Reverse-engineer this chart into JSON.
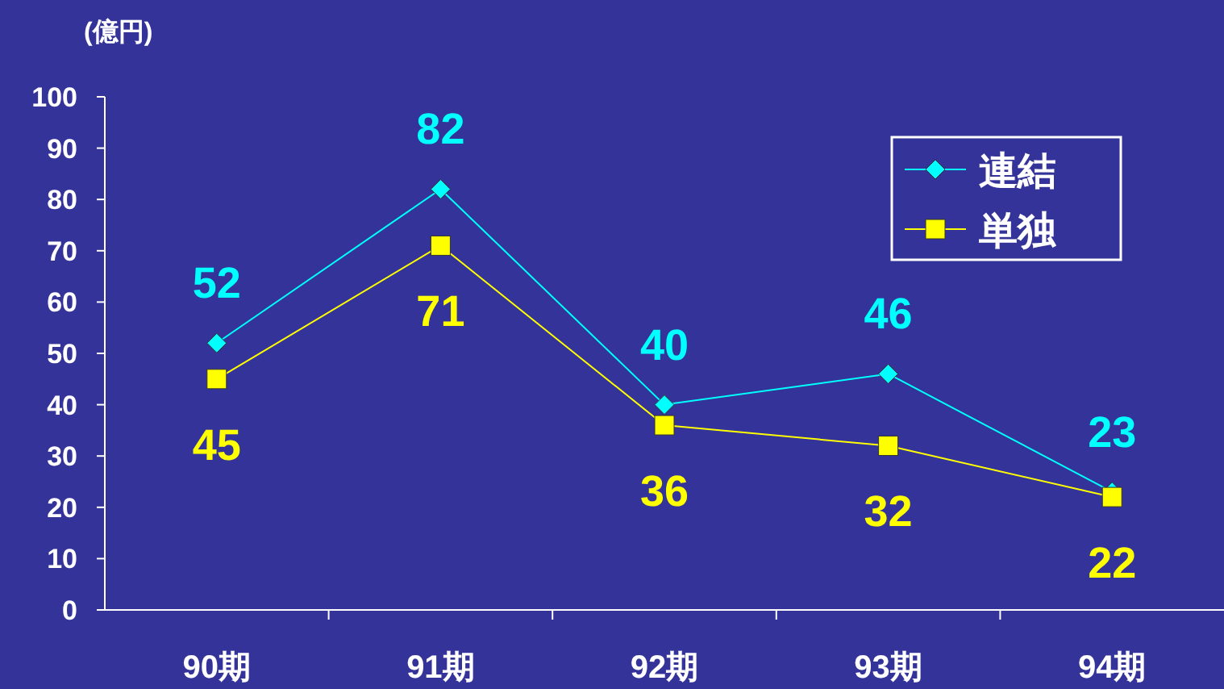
{
  "chart_data": {
    "type": "line",
    "ylabel": "(億円)",
    "categories": [
      "90期",
      "91期",
      "92期",
      "93期",
      "94期"
    ],
    "series": [
      {
        "name": "連結",
        "color": "#00ffff",
        "marker": "diamond",
        "values": [
          52,
          82,
          40,
          46,
          23
        ]
      },
      {
        "name": "単独",
        "color": "#ffff00",
        "marker": "square",
        "values": [
          45,
          71,
          36,
          32,
          22
        ]
      }
    ],
    "ylim": [
      0,
      100
    ],
    "yticks": [
      0,
      10,
      20,
      30,
      40,
      50,
      60,
      70,
      80,
      90,
      100
    ],
    "grid": false,
    "legend": "top right",
    "data_labels": true,
    "line_style": "solid"
  }
}
